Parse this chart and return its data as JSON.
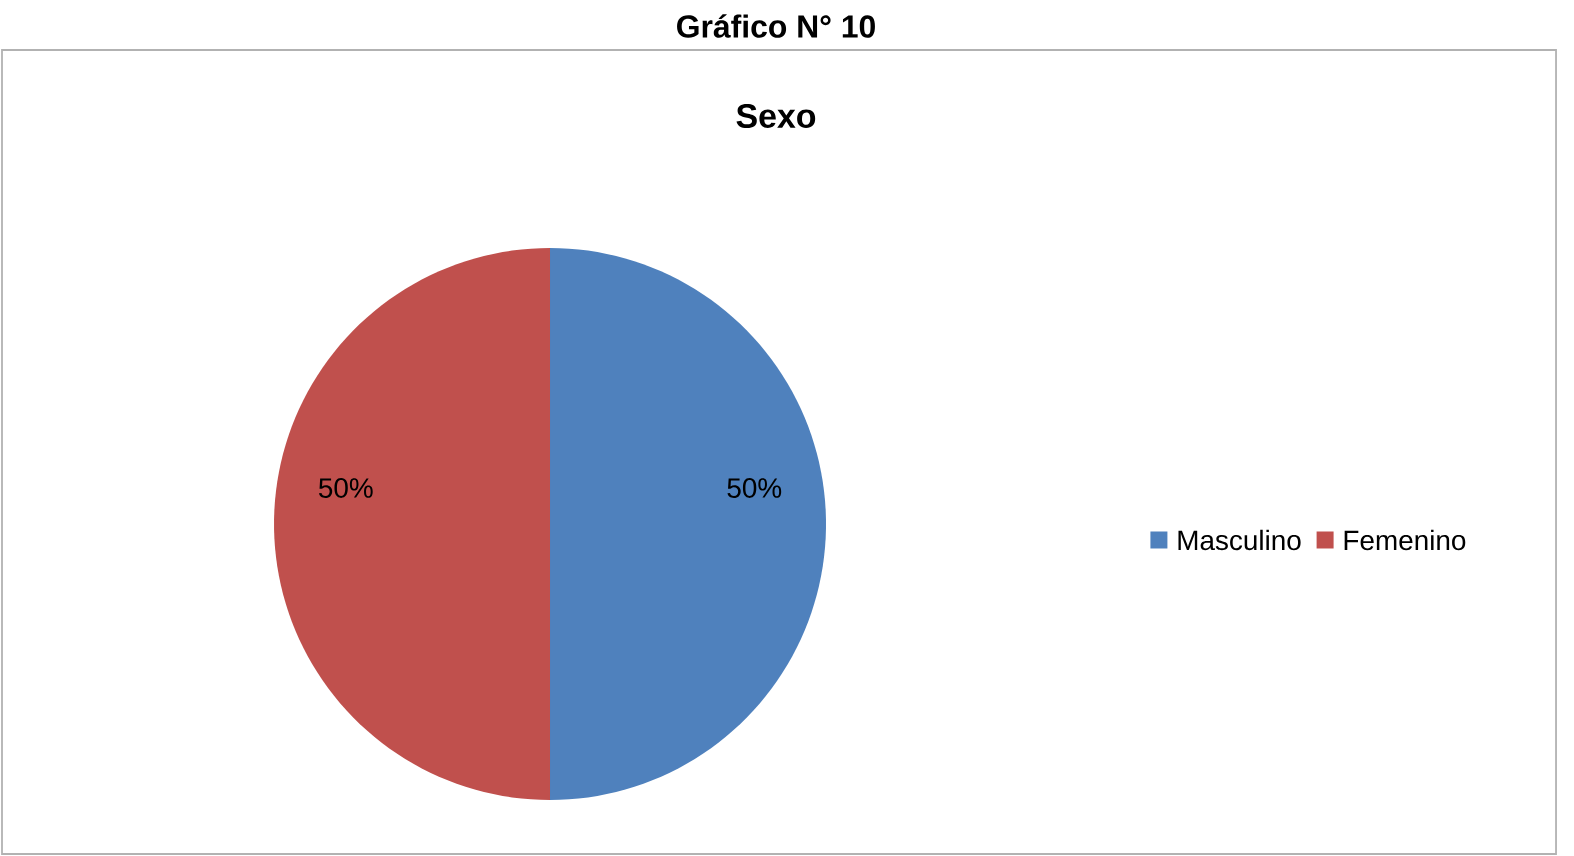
{
  "chart_data": {
    "type": "pie",
    "title": "Gráfico N° 10",
    "subtitle": "Sexo",
    "categories": [
      "Masculino",
      "Femenino"
    ],
    "values": [
      50,
      50
    ],
    "colors": [
      "#4f81bd",
      "#c0504d"
    ],
    "value_labels": [
      "50%",
      "50%"
    ],
    "legend": "right"
  }
}
